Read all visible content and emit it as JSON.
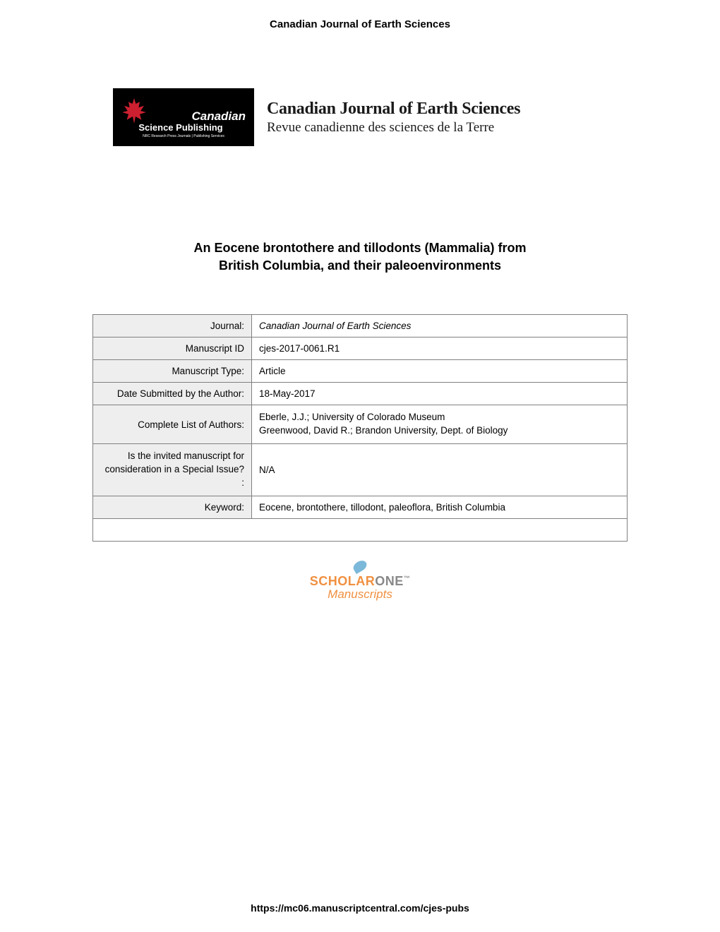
{
  "header": {
    "journal_name": "Canadian Journal of Earth Sciences"
  },
  "logo": {
    "text_canadian": "Canadian",
    "text_publishing": "Science Publishing",
    "text_tagline": "NRC Research Press Journals | Publishing Services",
    "journal_title_en": "Canadian Journal of Earth Sciences",
    "journal_title_fr": "Revue canadienne des sciences de la Terre",
    "maple_color": "#cc2030"
  },
  "article": {
    "title_line1": "An Eocene brontothere and tillodonts (Mammalia) from",
    "title_line2": "British Columbia, and their paleoenvironments"
  },
  "metadata": {
    "rows": [
      {
        "label": "Journal:",
        "value": "Canadian Journal of Earth Sciences",
        "italic": true
      },
      {
        "label": "Manuscript ID",
        "value": "cjes-2017-0061.R1"
      },
      {
        "label": "Manuscript Type:",
        "value": "Article"
      },
      {
        "label": "Date Submitted by the Author:",
        "value": "18-May-2017"
      },
      {
        "label": "Complete List of Authors:",
        "value": "Eberle, J.J.; University of Colorado Museum\nGreenwood, David R.; Brandon University, Dept. of Biology",
        "multiline": true
      },
      {
        "label": "Is the invited manuscript for consideration in a Special Issue? :",
        "value": "N/A",
        "multiline_label": true
      },
      {
        "label": "Keyword:",
        "value": "Eocene, brontothere, tillodont, paleoflora, British Columbia"
      }
    ]
  },
  "scholarone": {
    "scholar": "SCHOLAR",
    "one": "ONE",
    "tm": "™",
    "manuscripts": "Manuscripts"
  },
  "footer": {
    "url": "https://mc06.manuscriptcentral.com/cjes-pubs"
  },
  "colors": {
    "table_border": "#808080",
    "label_bg": "#eeeeee",
    "scholarone_orange": "#f09040",
    "scholarone_gray": "#888888",
    "scholarone_blue": "#7bb8d9"
  }
}
